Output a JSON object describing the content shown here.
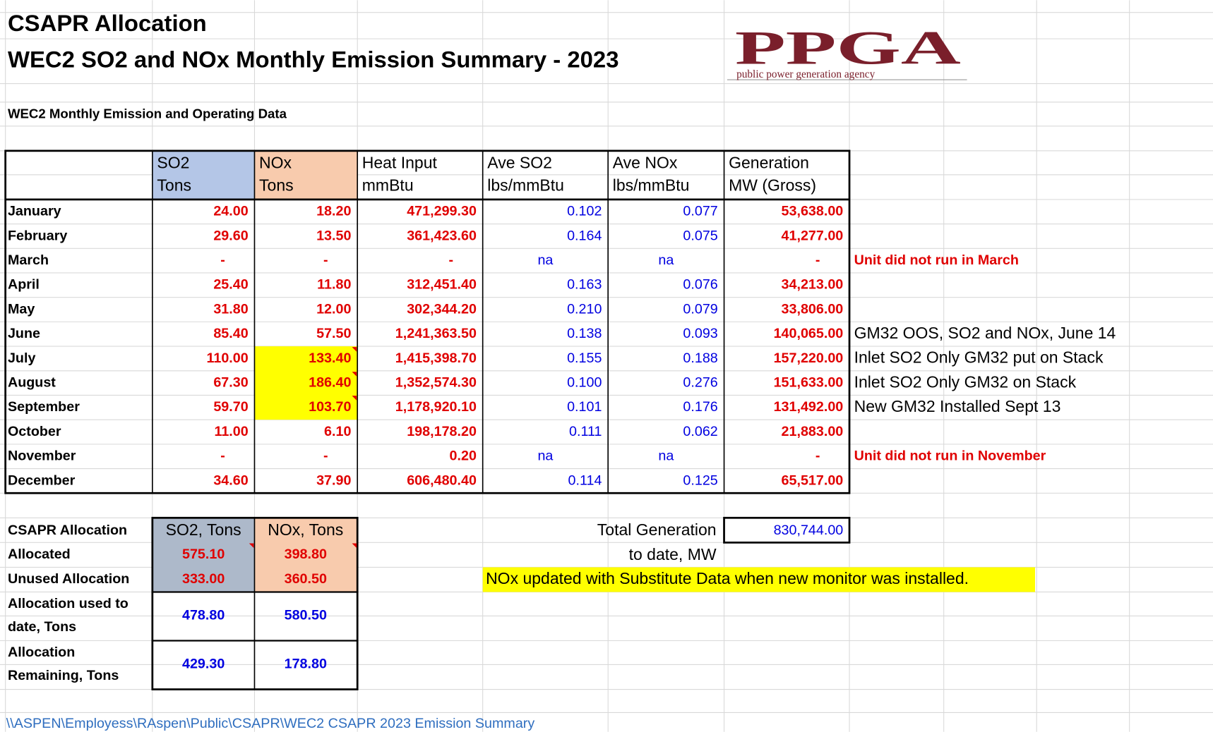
{
  "header": {
    "title": "CSAPR Allocation",
    "subtitle": "WEC2 SO2 and NOx Monthly Emission Summary - 2023",
    "logo_mark": "PPGA",
    "logo_caption": "public power generation agency"
  },
  "section_title": "WEC2 Monthly Emission and Operating  Data",
  "table": {
    "columns": [
      [
        "SO2",
        "Tons"
      ],
      [
        "NOx",
        "Tons"
      ],
      [
        "Heat Input",
        "mmBtu"
      ],
      [
        "Ave SO2",
        "lbs/mmBtu"
      ],
      [
        "Ave NOx",
        "lbs/mmBtu"
      ],
      [
        "Generation",
        "MW (Gross)"
      ]
    ],
    "rows": [
      [
        "January",
        "24.00",
        "18.20",
        "471,299.30",
        "0.102",
        "0.077",
        "53,638.00",
        null
      ],
      [
        "February",
        "29.60",
        "13.50",
        "361,423.60",
        "0.164",
        "0.075",
        "41,277.00",
        null
      ],
      [
        "March",
        "-",
        "-",
        "-",
        "na",
        "na",
        "-",
        "Unit did not run in March"
      ],
      [
        "April",
        "25.40",
        "11.80",
        "312,451.40",
        "0.163",
        "0.076",
        "34,213.00",
        null
      ],
      [
        "May",
        "31.80",
        "12.00",
        "302,344.20",
        "0.210",
        "0.079",
        "33,806.00",
        null
      ],
      [
        "June",
        "85.40",
        "57.50",
        "1,241,363.50",
        "0.138",
        "0.093",
        "140,065.00",
        "GM32 OOS, SO2 and NOx, June 14"
      ],
      [
        "July",
        "110.00",
        "133.40",
        "1,415,398.70",
        "0.155",
        "0.188",
        "157,220.00",
        "Inlet SO2 Only GM32 put on Stack"
      ],
      [
        "August",
        "67.30",
        "186.40",
        "1,352,574.30",
        "0.100",
        "0.276",
        "151,633.00",
        "Inlet SO2 Only GM32 on Stack"
      ],
      [
        "September",
        "59.70",
        "103.70",
        "1,178,920.10",
        "0.101",
        "0.176",
        "131,492.00",
        "New GM32 Installed Sept 13"
      ],
      [
        "October",
        "11.00",
        "6.10",
        "198,178.20",
        "0.111",
        "0.062",
        "21,883.00",
        null
      ],
      [
        "November",
        "-",
        "-",
        "0.20",
        "na",
        "na",
        "-",
        "Unit did not run in November"
      ],
      [
        "December",
        "34.60",
        "37.90",
        "606,480.40",
        "0.114",
        "0.125",
        "65,517.00",
        null
      ]
    ]
  },
  "allocation": {
    "header": [
      "CSAPR Allocation",
      "SO2, Tons",
      "NOx, Tons"
    ],
    "rows": [
      [
        [
          "Allocated"
        ],
        "575.10",
        "398.80"
      ],
      [
        [
          "Unused Allocation"
        ],
        "333.00",
        "360.50"
      ],
      [
        [
          "Allocation used  to",
          "date, Tons"
        ],
        "478.80",
        "580.50"
      ],
      [
        [
          "Allocation",
          "Remaining, Tons"
        ],
        "429.30",
        "178.80"
      ]
    ]
  },
  "total": {
    "label": "Total Generation",
    "label2": "to date, MW",
    "value": "830,744.00"
  },
  "note": "NOx updated with Substitute Data when new monitor was installed.",
  "footer": "\\\\ASPEN\\Employess\\RAspen\\Public\\CSAPR\\WEC2 CSAPR 2023 Emission Summary"
}
